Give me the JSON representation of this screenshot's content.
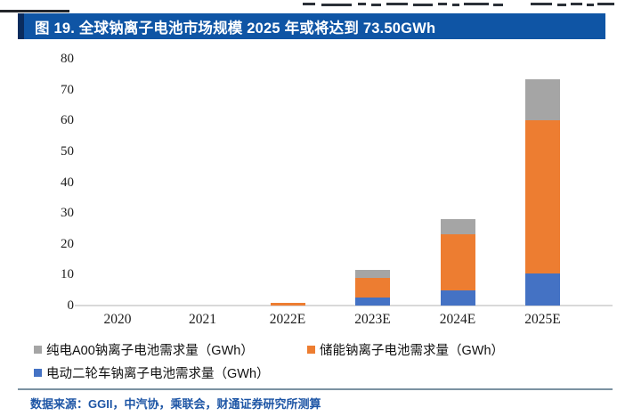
{
  "page": {
    "title": "图 19. 全球钠离子电池市场规模 2025 年或将达到 73.50GWh",
    "source_note": "数据来源：GGII，中汽协，乘联会，财通证券研究所测算"
  },
  "colors": {
    "title_bar_bg": "#0F55A5",
    "title_bar_edge": "#0A2C5E",
    "title_text": "#FFFFFF",
    "bar_blue": "#4472C4",
    "bar_orange": "#ED7D31",
    "bar_gray": "#A5A5A5",
    "axis_line": "#D9D9D9",
    "footer_rule": "#7B92A2",
    "source_text": "#1D55A5"
  },
  "legend": {
    "items": [
      {
        "label": "纯电A00钠离子电池需求量（GWh）",
        "color": "#A5A5A5"
      },
      {
        "label": "储能钠离子电池需求量（GWh）",
        "color": "#ED7D31"
      },
      {
        "label": "电动二轮车钠离子电池需求量（GWh）",
        "color": "#4472C4"
      }
    ]
  },
  "chart_data": {
    "type": "bar",
    "stacked": true,
    "title": "图 19. 全球钠离子电池市场规模 2025 年或将达到 73.50GWh",
    "categories": [
      "2020",
      "2021",
      "2022E",
      "2023E",
      "2024E",
      "2025E"
    ],
    "series": [
      {
        "name": "电动二轮车钠离子电池需求量（GWh）",
        "color": "#4472C4",
        "values": [
          0,
          0,
          0,
          2.5,
          5,
          10.5
        ]
      },
      {
        "name": "储能钠离子电池需求量（GWh）",
        "color": "#ED7D31",
        "values": [
          0,
          0,
          1,
          6.5,
          18,
          49.5
        ]
      },
      {
        "name": "纯电A00钠离子电池需求量（GWh）",
        "color": "#A5A5A5",
        "values": [
          0,
          0,
          0,
          2.5,
          5,
          13.5
        ]
      }
    ],
    "totals": [
      0,
      0,
      1,
      11.5,
      28,
      73.5
    ],
    "ylabel": "",
    "xlabel": "",
    "ylim": [
      0,
      80
    ],
    "yticks": [
      0,
      10,
      20,
      30,
      40,
      50,
      60,
      70,
      80
    ],
    "grid": false,
    "legend_position": "bottom"
  }
}
